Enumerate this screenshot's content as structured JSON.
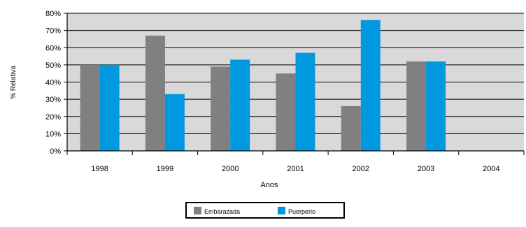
{
  "chart_data": {
    "type": "bar",
    "categories": [
      "1998",
      "1999",
      "2000",
      "2001",
      "2002",
      "2003",
      "2004"
    ],
    "series": [
      {
        "name": "Embarazada",
        "color": "#808080",
        "values": [
          50,
          67,
          49,
          45,
          26,
          52,
          null
        ]
      },
      {
        "name": "Puerperio",
        "color": "#0099e0",
        "values": [
          50,
          33,
          53,
          57,
          76,
          52,
          null
        ]
      }
    ],
    "xlabel": "Anos",
    "ylabel": "% Relativa",
    "ylim": [
      0,
      80
    ],
    "yticks": [
      "0%",
      "10%",
      "20%",
      "30%",
      "40%",
      "50%",
      "60%",
      "70%",
      "80%"
    ],
    "grid": true,
    "plot_background": "#d9d9d9",
    "legend_position": "bottom-center"
  }
}
